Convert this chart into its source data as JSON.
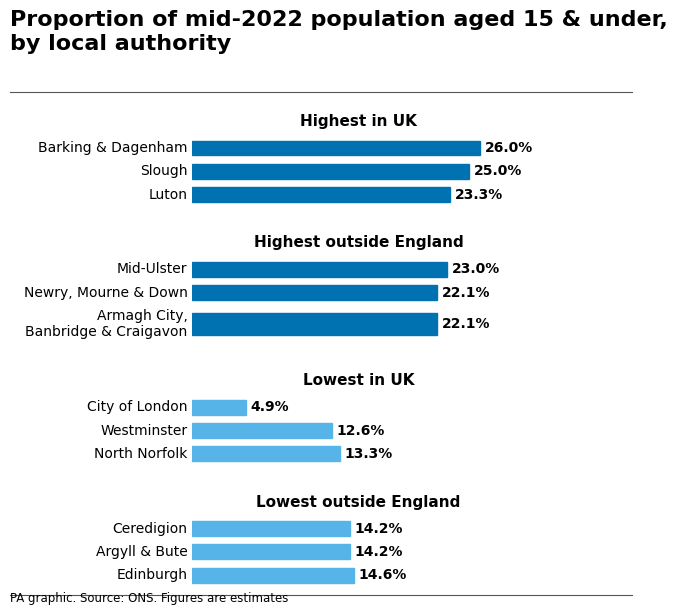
{
  "title": "Proportion of mid-2022 population aged 15 & under,\nby local authority",
  "caption": "PA graphic. Source: ONS. Figures are estimates",
  "sections": [
    {
      "header": "Highest in UK",
      "bars": [
        {
          "label": "Barking & Dagenham",
          "value": 26.0,
          "color": "#0072b2"
        },
        {
          "label": "Slough",
          "value": 25.0,
          "color": "#0072b2"
        },
        {
          "label": "Luton",
          "value": 23.3,
          "color": "#0072b2"
        }
      ]
    },
    {
      "header": "Highest outside England",
      "bars": [
        {
          "label": "Mid-Ulster",
          "value": 23.0,
          "color": "#0072b2"
        },
        {
          "label": "Newry, Mourne & Down",
          "value": 22.1,
          "color": "#0072b2"
        },
        {
          "label": "Armagh City,\nBanbridge & Craigavon",
          "value": 22.1,
          "color": "#0072b2"
        }
      ]
    },
    {
      "header": "Lowest in UK",
      "bars": [
        {
          "label": "City of London",
          "value": 4.9,
          "color": "#56b4e9"
        },
        {
          "label": "Westminster",
          "value": 12.6,
          "color": "#56b4e9"
        },
        {
          "label": "North Norfolk",
          "value": 13.3,
          "color": "#56b4e9"
        }
      ]
    },
    {
      "header": "Lowest outside England",
      "bars": [
        {
          "label": "Ceredigion",
          "value": 14.2,
          "color": "#56b4e9"
        },
        {
          "label": "Argyll & Bute",
          "value": 14.2,
          "color": "#56b4e9"
        },
        {
          "label": "Edinburgh",
          "value": 14.6,
          "color": "#56b4e9"
        }
      ]
    }
  ],
  "bar_dark_color": "#0072b2",
  "bar_light_color": "#56b4e9",
  "background_color": "#ffffff",
  "title_fontsize": 16,
  "header_fontsize": 11,
  "label_fontsize": 10,
  "value_fontsize": 10,
  "caption_fontsize": 8.5,
  "xlim_max": 30
}
